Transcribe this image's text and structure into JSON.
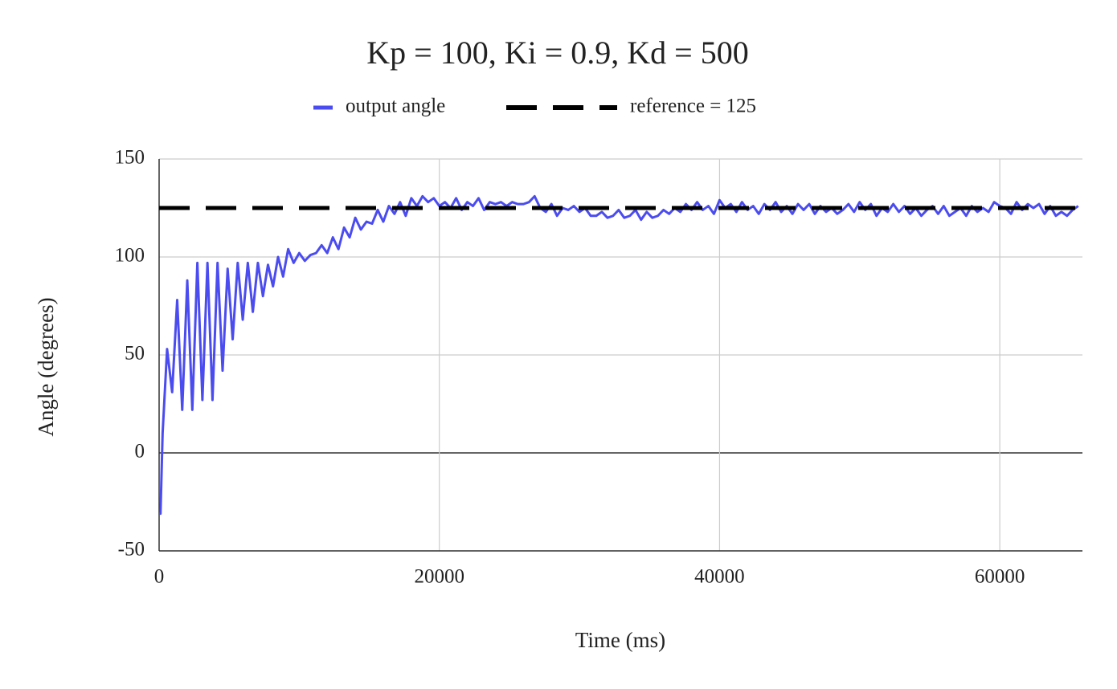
{
  "chart_data": {
    "type": "line",
    "title": "Kp = 100, Ki = 0.9, Kd = 500",
    "x_label": "Time (ms)",
    "y_label": "Angle (degrees)",
    "xlim": [
      0,
      65900
    ],
    "ylim": [
      -50,
      150
    ],
    "xticks": [
      0,
      20000,
      40000,
      60000
    ],
    "yticks": [
      -50,
      0,
      50,
      100,
      150
    ],
    "grid": true,
    "legend": "top",
    "series": [
      {
        "name": "output angle",
        "color": "#4b4cf0",
        "dash": false,
        "x": [
          0,
          100,
          250,
          570,
          930,
          1290,
          1650,
          2010,
          2370,
          2730,
          3090,
          3450,
          3810,
          4170,
          4530,
          4890,
          5250,
          5610,
          5970,
          6330,
          6690,
          7050,
          7410,
          7770,
          8130,
          8490,
          8850,
          9210,
          9600,
          10000,
          10400,
          10800,
          11200,
          11600,
          12000,
          12400,
          12800,
          13200,
          13600,
          14000,
          14400,
          14800,
          15200,
          15600,
          16000,
          16400,
          16800,
          17200,
          17600,
          18000,
          18400,
          18800,
          19200,
          19600,
          20000,
          20400,
          20800,
          21200,
          21600,
          22000,
          22400,
          22800,
          23200,
          23600,
          24000,
          24400,
          24800,
          25200,
          25600,
          26000,
          26400,
          26800,
          27200,
          27600,
          28000,
          28400,
          28800,
          29200,
          29600,
          30000,
          30400,
          30800,
          31200,
          31600,
          32000,
          32400,
          32800,
          33200,
          33600,
          34000,
          34400,
          34800,
          35200,
          35600,
          36000,
          36400,
          36800,
          37200,
          37600,
          38000,
          38400,
          38800,
          39200,
          39600,
          40000,
          40400,
          40800,
          41200,
          41600,
          42000,
          42400,
          42800,
          43200,
          43600,
          44000,
          44400,
          44800,
          45200,
          45600,
          46000,
          46400,
          46800,
          47200,
          47600,
          48000,
          48400,
          48800,
          49200,
          49600,
          50000,
          50400,
          50800,
          51200,
          51600,
          52000,
          52400,
          52800,
          53200,
          53600,
          54000,
          54400,
          54800,
          55200,
          55600,
          56000,
          56400,
          56800,
          57200,
          57600,
          58000,
          58400,
          58800,
          59200,
          59600,
          60000,
          60400,
          60800,
          61200,
          61600,
          62000,
          62400,
          62800,
          63200,
          63600,
          64000,
          64400,
          64800,
          65200,
          65600
        ],
        "values": [
          -31,
          -31,
          10,
          53,
          31,
          78,
          22,
          88,
          22,
          97,
          27,
          97,
          27,
          97,
          42,
          94,
          58,
          97,
          68,
          97,
          72,
          97,
          80,
          96,
          85,
          100,
          90,
          104,
          97,
          102,
          98,
          101,
          102,
          106,
          102,
          110,
          104,
          115,
          110,
          120,
          114,
          118,
          117,
          124,
          118,
          126,
          122,
          128,
          121,
          130,
          126,
          131,
          128,
          130,
          126,
          128,
          125,
          130,
          124,
          128,
          126,
          130,
          124,
          128,
          127,
          128,
          126,
          128,
          127,
          127,
          128,
          131,
          125,
          123,
          127,
          121,
          125,
          124,
          126,
          123,
          125,
          121,
          121,
          123,
          120,
          121,
          124,
          120,
          121,
          124,
          119,
          123,
          120,
          121,
          124,
          122,
          125,
          123,
          127,
          124,
          128,
          124,
          126,
          122,
          129,
          125,
          127,
          123,
          128,
          124,
          126,
          122,
          127,
          124,
          128,
          123,
          126,
          122,
          127,
          124,
          127,
          122,
          126,
          123,
          125,
          122,
          124,
          127,
          123,
          128,
          124,
          127,
          121,
          125,
          123,
          127,
          123,
          126,
          122,
          125,
          121,
          124,
          126,
          122,
          126,
          121,
          123,
          125,
          121,
          126,
          123,
          125,
          123,
          128,
          126,
          125,
          122,
          128,
          124,
          127,
          125,
          127,
          122,
          126,
          121,
          123,
          121,
          124,
          126
        ]
      },
      {
        "name": "reference = 125",
        "color": "#000000",
        "dash": true,
        "x": [
          0,
          65900
        ],
        "values": [
          125,
          125
        ]
      }
    ]
  }
}
